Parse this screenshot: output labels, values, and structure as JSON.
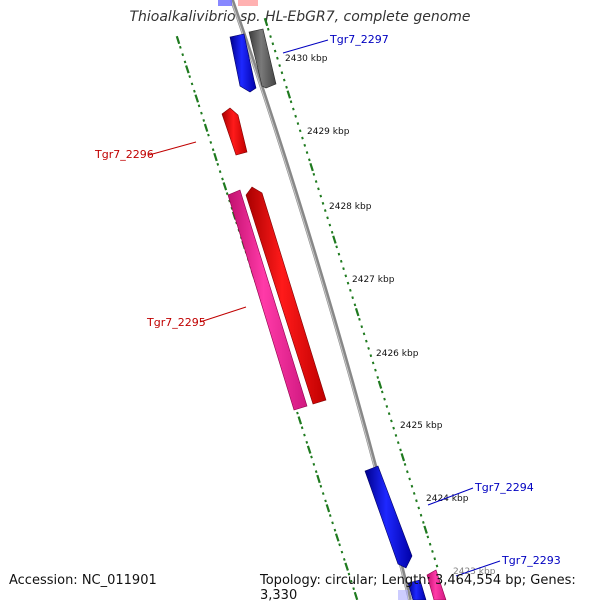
{
  "title": "Thioalkalivibrio sp. HL-EbGR7, complete genome",
  "footer": {
    "accession": "Accession: NC_011901",
    "summary": "Topology: circular; Length: 3,464,554 bp; Genes: 3,330"
  },
  "colors": {
    "backbone": "#8a8a8a",
    "tick": "#1f7a1f",
    "forward_label": "#c00000",
    "reverse_label": "#0000c0",
    "blue_feature": "#0a14e0",
    "red_feature": "#ff1010",
    "pink_feature": "#ff2aa0",
    "gray_feature": "#666666"
  },
  "kbp_labels": [
    "2430 kbp",
    "2429 kbp",
    "2428 kbp",
    "2427 kbp",
    "2426 kbp",
    "2425 kbp",
    "2424 kbp",
    "2423 kbp"
  ],
  "gene_labels": [
    "Tgr7_2297",
    "Tgr7_2296",
    "Tgr7_2295",
    "Tgr7_2294",
    "Tgr7_2293"
  ]
}
